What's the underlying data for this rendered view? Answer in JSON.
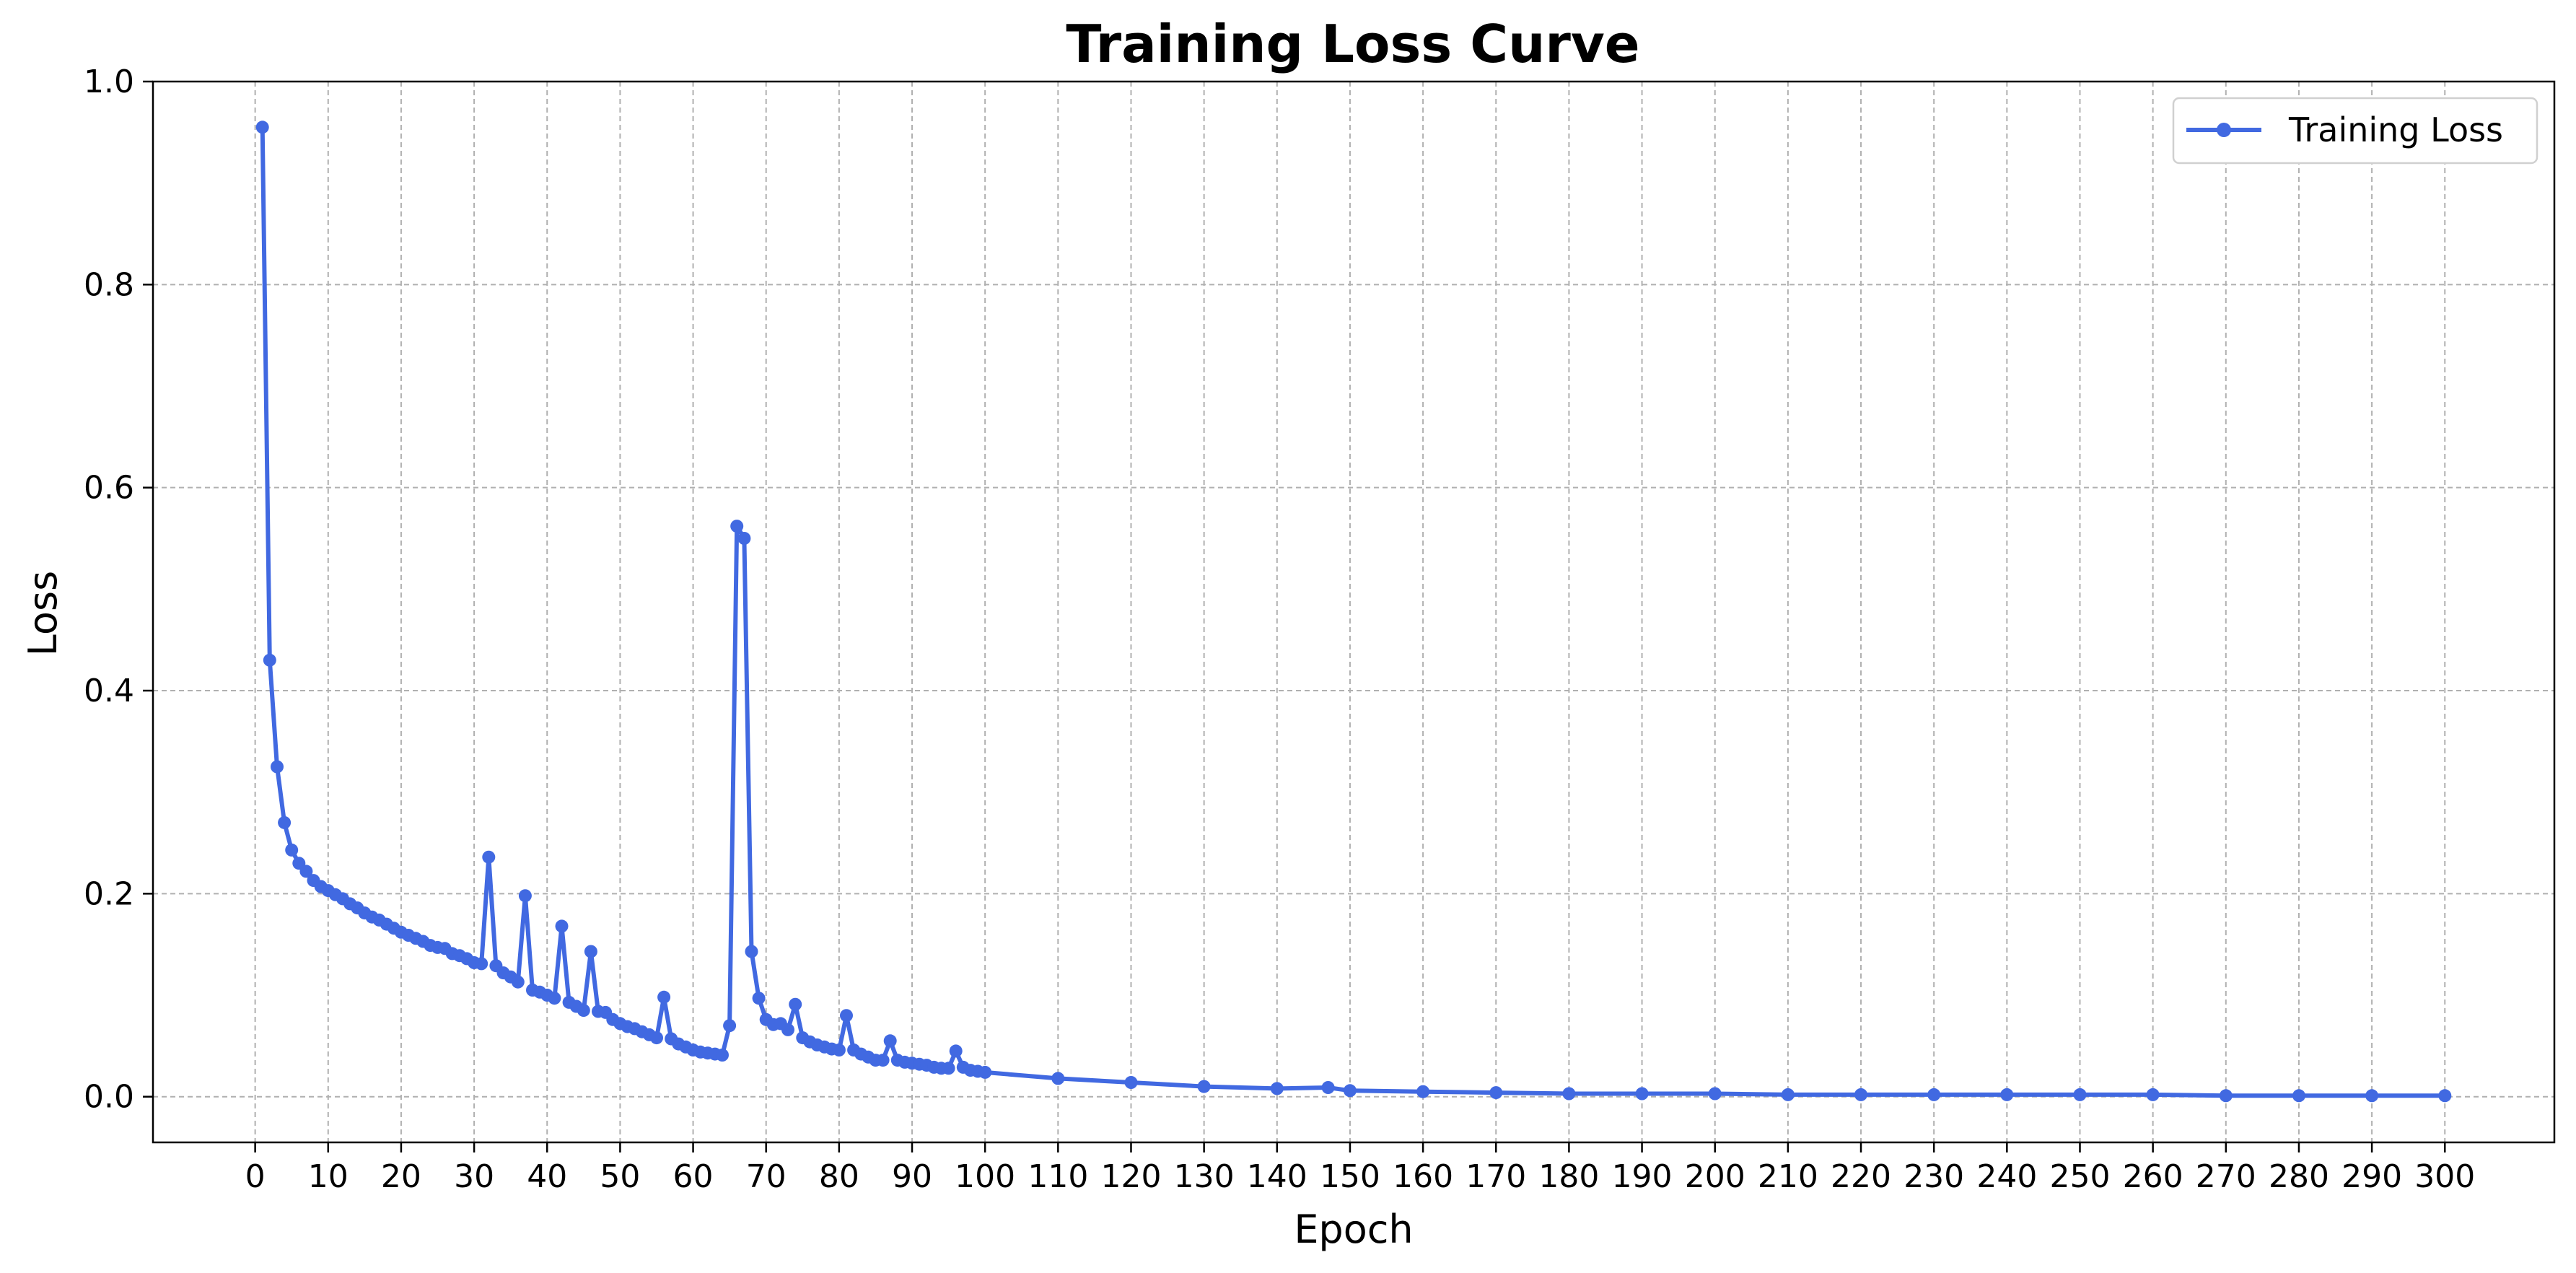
{
  "chart_data": {
    "type": "line",
    "title": "Training Loss Curve",
    "xlabel": "Epoch",
    "ylabel": "Loss",
    "xlim": [
      -14,
      315
    ],
    "ylim": [
      -0.045,
      1.0
    ],
    "xticks": [
      0,
      10,
      20,
      30,
      40,
      50,
      60,
      70,
      80,
      90,
      100,
      110,
      120,
      130,
      140,
      150,
      160,
      170,
      180,
      190,
      200,
      210,
      220,
      230,
      240,
      250,
      260,
      270,
      280,
      290,
      300
    ],
    "xtick_labels": [
      "0",
      "10",
      "20",
      "30",
      "40",
      "50",
      "60",
      "70",
      "80",
      "90",
      "100",
      "110",
      "120",
      "130",
      "140",
      "150",
      "160",
      "170",
      "180",
      "190",
      "200",
      "210",
      "220",
      "230",
      "240",
      "250",
      "260",
      "270",
      "280",
      "290",
      "300"
    ],
    "yticks": [
      0.0,
      0.2,
      0.4,
      0.6,
      0.8,
      1.0
    ],
    "ytick_labels": [
      "0.0",
      "0.2",
      "0.4",
      "0.6",
      "0.8",
      "1.0"
    ],
    "grid": true,
    "legend_position": "top-right",
    "series": [
      {
        "name": "Training Loss",
        "color": "#4169e1",
        "marker": "circle",
        "x": [
          1,
          2,
          3,
          4,
          5,
          6,
          7,
          8,
          9,
          10,
          11,
          12,
          13,
          14,
          15,
          16,
          17,
          18,
          19,
          20,
          21,
          22,
          23,
          24,
          25,
          26,
          27,
          28,
          29,
          30,
          31,
          32,
          33,
          34,
          35,
          36,
          37,
          38,
          39,
          40,
          41,
          42,
          43,
          44,
          45,
          46,
          47,
          48,
          49,
          50,
          51,
          52,
          53,
          54,
          55,
          56,
          57,
          58,
          59,
          60,
          61,
          62,
          63,
          64,
          65,
          66,
          67,
          68,
          69,
          70,
          71,
          72,
          73,
          74,
          75,
          76,
          77,
          78,
          79,
          80,
          81,
          82,
          83,
          84,
          85,
          86,
          87,
          88,
          89,
          90,
          91,
          92,
          93,
          94,
          95,
          96,
          97,
          98,
          99,
          100,
          110,
          120,
          130,
          140,
          147,
          150,
          160,
          170,
          180,
          190,
          200,
          210,
          220,
          230,
          240,
          250,
          260,
          270,
          280,
          290,
          300
        ],
        "y": [
          0.955,
          0.43,
          0.325,
          0.27,
          0.243,
          0.23,
          0.222,
          0.213,
          0.207,
          0.203,
          0.199,
          0.195,
          0.19,
          0.186,
          0.181,
          0.177,
          0.174,
          0.17,
          0.166,
          0.162,
          0.159,
          0.156,
          0.153,
          0.149,
          0.147,
          0.146,
          0.141,
          0.139,
          0.136,
          0.132,
          0.131,
          0.236,
          0.129,
          0.122,
          0.118,
          0.113,
          0.198,
          0.105,
          0.103,
          0.1,
          0.097,
          0.168,
          0.093,
          0.089,
          0.085,
          0.143,
          0.084,
          0.083,
          0.076,
          0.072,
          0.069,
          0.067,
          0.064,
          0.061,
          0.058,
          0.098,
          0.057,
          0.052,
          0.049,
          0.046,
          0.044,
          0.043,
          0.042,
          0.041,
          0.07,
          0.562,
          0.55,
          0.143,
          0.097,
          0.076,
          0.071,
          0.072,
          0.066,
          0.091,
          0.058,
          0.054,
          0.051,
          0.049,
          0.047,
          0.046,
          0.08,
          0.046,
          0.042,
          0.039,
          0.036,
          0.036,
          0.055,
          0.036,
          0.034,
          0.033,
          0.032,
          0.031,
          0.029,
          0.028,
          0.028,
          0.045,
          0.029,
          0.026,
          0.025,
          0.024,
          0.018,
          0.014,
          0.01,
          0.008,
          0.009,
          0.006,
          0.005,
          0.004,
          0.003,
          0.003,
          0.003,
          0.002,
          0.002,
          0.002,
          0.002,
          0.002,
          0.002,
          0.001,
          0.001,
          0.001,
          0.001
        ]
      }
    ]
  }
}
